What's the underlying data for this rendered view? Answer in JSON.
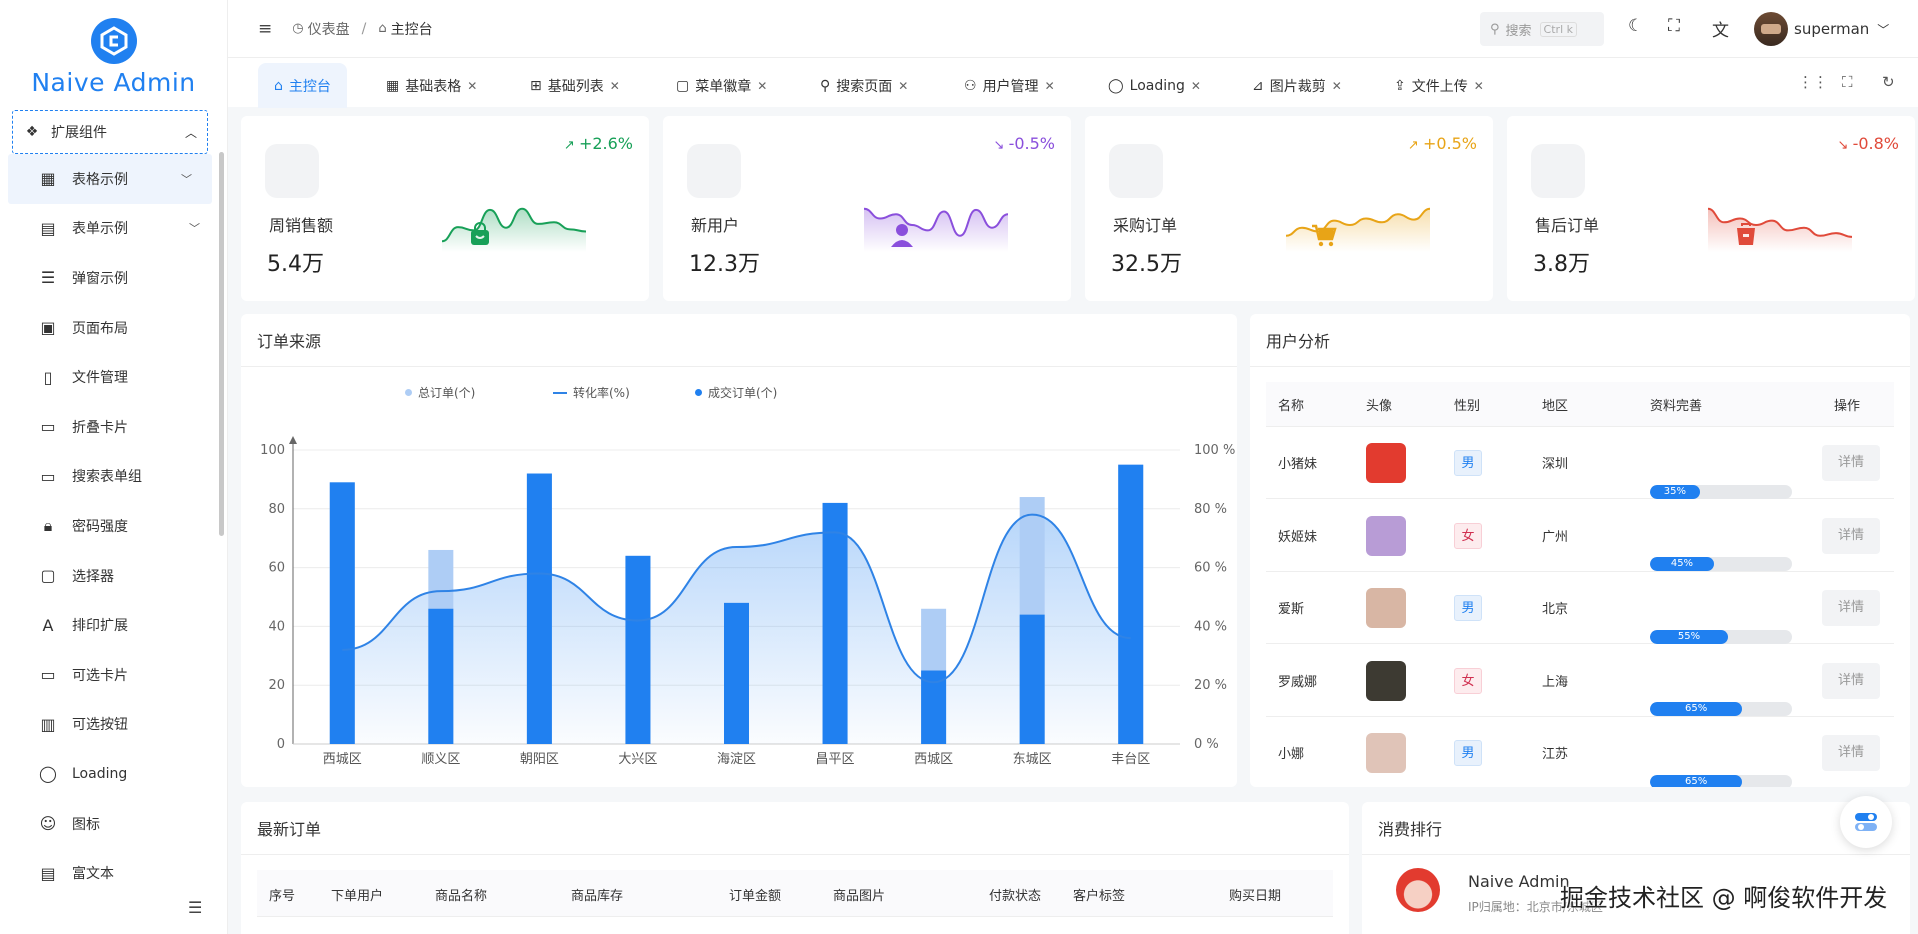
{
  "app": {
    "logo_text": "Naive Admin"
  },
  "sidebar": {
    "parent": {
      "label": "扩展组件",
      "icon": "components-icon"
    },
    "items": [
      {
        "label": "表格示例",
        "icon": "table-icon",
        "active": true,
        "chevron": true
      },
      {
        "label": "表单示例",
        "icon": "form-icon",
        "chevron": true
      },
      {
        "label": "弹窗示例",
        "icon": "modal-icon"
      },
      {
        "label": "页面布局",
        "icon": "layout-icon"
      },
      {
        "label": "文件管理",
        "icon": "file-icon"
      },
      {
        "label": "折叠卡片",
        "icon": "collapse-card-icon"
      },
      {
        "label": "搜索表单组",
        "icon": "search-form-icon"
      },
      {
        "label": "密码强度",
        "icon": "lock-icon"
      },
      {
        "label": "选择器",
        "icon": "select-icon"
      },
      {
        "label": "排印扩展",
        "icon": "typography-icon"
      },
      {
        "label": "可选卡片",
        "icon": "card-icon"
      },
      {
        "label": "可选按钮",
        "icon": "button-icon"
      },
      {
        "label": "Loading",
        "icon": "loading-icon"
      },
      {
        "label": "图标",
        "icon": "smile-icon"
      },
      {
        "label": "富文本",
        "icon": "richtext-icon"
      }
    ]
  },
  "header": {
    "breadcrumb": [
      "仪表盘",
      "主控台"
    ],
    "search_placeholder": "搜索",
    "search_shortcut": "Ctrl k",
    "username": "superman"
  },
  "tabs": [
    {
      "label": "主控台",
      "icon": "home-icon",
      "active": true
    },
    {
      "label": "基础表格",
      "icon": "table-icon"
    },
    {
      "label": "基础列表",
      "icon": "grid-icon"
    },
    {
      "label": "菜单徽章",
      "icon": "badge-icon"
    },
    {
      "label": "搜索页面",
      "icon": "search-icon"
    },
    {
      "label": "用户管理",
      "icon": "user-icon"
    },
    {
      "label": "Loading",
      "icon": "loading-icon"
    },
    {
      "label": "图片裁剪",
      "icon": "crop-icon"
    },
    {
      "label": "文件上传",
      "icon": "upload-icon"
    }
  ],
  "stats": [
    {
      "label": "周销售额",
      "value": "5.4万",
      "trend": "+2.6%",
      "color": "#18a058",
      "icon": "shopping-bag-icon",
      "spark": [
        20,
        46,
        40,
        78,
        45,
        80,
        52,
        55,
        42,
        38
      ]
    },
    {
      "label": "新用户",
      "value": "12.3万",
      "trend": "-0.5%",
      "color": "#8a4fdc",
      "icon": "user-icon",
      "spark": [
        80,
        62,
        70,
        50,
        40,
        75,
        30,
        78,
        45,
        70
      ]
    },
    {
      "label": "采购订单",
      "value": "32.5万",
      "trend": "+0.5%",
      "color": "#e8a417",
      "icon": "cart-icon",
      "spark": [
        30,
        45,
        38,
        58,
        50,
        62,
        55,
        70,
        60,
        80
      ]
    },
    {
      "label": "售后订单",
      "value": "3.8万",
      "trend": "-0.8%",
      "color": "#e04a3a",
      "icon": "return-icon",
      "spark": [
        80,
        55,
        62,
        50,
        58,
        40,
        45,
        30,
        35,
        28
      ]
    }
  ],
  "order_source": {
    "title": "订单来源",
    "chart_data": {
      "type": "bar",
      "categories": [
        "西城区",
        "顺义区",
        "朝阳区",
        "大兴区",
        "海淀区",
        "昌平区",
        "西城区",
        "东城区",
        "丰台区"
      ],
      "series": [
        {
          "name": "总订单(个)",
          "type": "bar",
          "values": [
            89,
            66,
            92,
            64,
            48,
            82,
            46,
            84,
            95
          ]
        },
        {
          "name": "转化率(%)",
          "type": "line",
          "axis": "right",
          "values": [
            32,
            52,
            58,
            42,
            67,
            72,
            21,
            78,
            36
          ]
        },
        {
          "name": "成交订单(个)",
          "type": "bar",
          "values": [
            89,
            46,
            92,
            64,
            48,
            82,
            25,
            44,
            95
          ]
        }
      ],
      "ylim": [
        0,
        100
      ],
      "yticks": [
        "0",
        "20",
        "40",
        "60",
        "80",
        "100"
      ],
      "y2ticks": [
        "0 %",
        "20 %",
        "40 %",
        "60 %",
        "80 %",
        "100 %"
      ],
      "legend": "top-center",
      "colors": {
        "total": "#aecdf5",
        "line": "#2f83e6",
        "deal": "#2080f0"
      }
    }
  },
  "user_analysis": {
    "title": "用户分析",
    "columns": [
      "名称",
      "头像",
      "性别",
      "地区",
      "资料完善",
      "操作"
    ],
    "rows": [
      {
        "name": "小猪妹",
        "gender": "男",
        "region": "深圳",
        "complete": 35,
        "complete_label": "35%",
        "action": "详情",
        "avatar_color": "#e23b2f"
      },
      {
        "name": "妖姬妹",
        "gender": "女",
        "region": "广州",
        "complete": 45,
        "complete_label": "45%",
        "action": "详情",
        "avatar_color": "#b89cd6"
      },
      {
        "name": "爱斯",
        "gender": "男",
        "region": "北京",
        "complete": 55,
        "complete_label": "55%",
        "action": "详情",
        "avatar_color": "#d8b6a4"
      },
      {
        "name": "罗威娜",
        "gender": "女",
        "region": "上海",
        "complete": 65,
        "complete_label": "65%",
        "action": "详情",
        "avatar_color": "#3d3a32"
      },
      {
        "name": "小娜",
        "gender": "男",
        "region": "江苏",
        "complete": 65,
        "complete_label": "65%",
        "action": "详情",
        "avatar_color": "#e0c4b8"
      }
    ]
  },
  "latest_orders": {
    "title": "最新订单",
    "columns": [
      "序号",
      "下单用户",
      "商品名称",
      "商品库存",
      "订单金额",
      "商品图片",
      "付款状态",
      "客户标签",
      "购买日期"
    ]
  },
  "ranking": {
    "title": "消费排行",
    "first": {
      "name": "Naive Admin",
      "location": "IP归属地：北京市/东城区"
    }
  },
  "watermark": "掘金技术社区 @ 啊俊软件开发"
}
